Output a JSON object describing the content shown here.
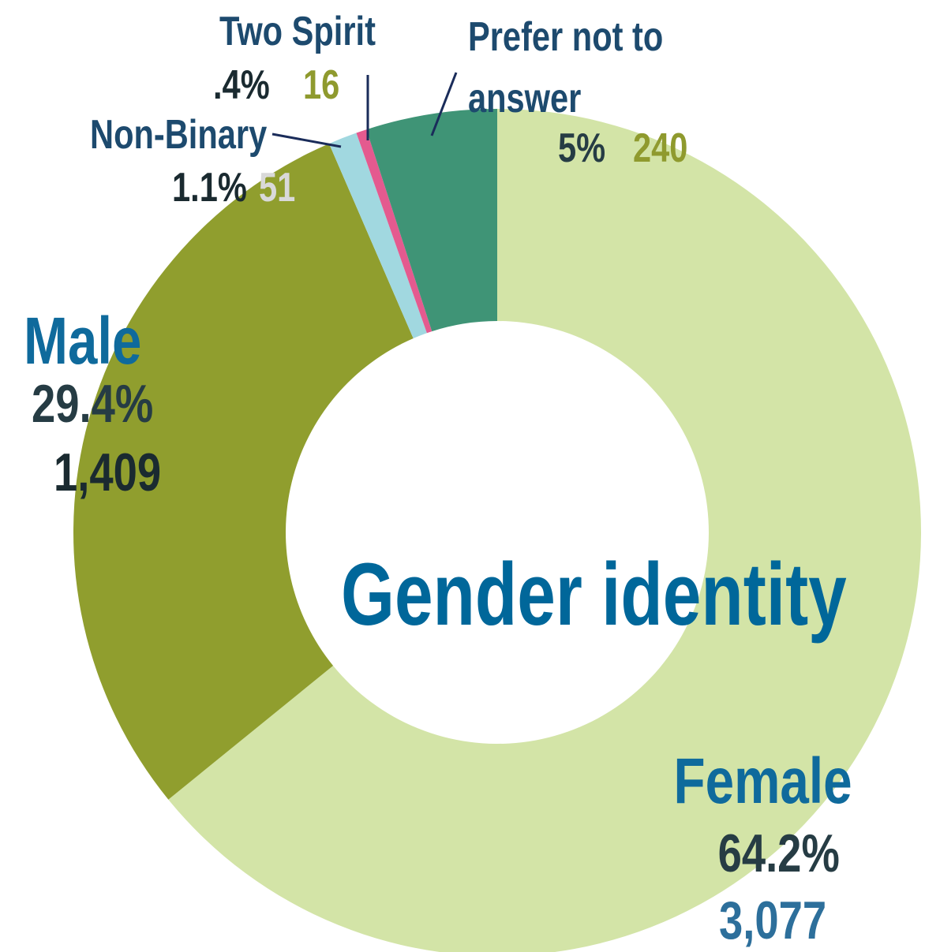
{
  "chart_data": {
    "type": "donut",
    "title": "Gender identity",
    "categories": [
      "Female",
      "Male",
      "Non-Binary",
      "Two Spirit",
      "Prefer not to answer"
    ],
    "values": [
      64.2,
      29.4,
      1.1,
      0.4,
      5
    ],
    "value_labels": [
      "64.2%",
      "29.4%",
      "1.1%",
      ".4%",
      "5%"
    ],
    "counts": [
      3077,
      1409,
      51,
      16,
      240
    ],
    "count_labels": [
      "3,077",
      "1,409",
      "51",
      "16",
      "240"
    ],
    "colors": [
      "#d3e4a7",
      "#909e2e",
      "#a1d8e0",
      "#e45a8f",
      "#3f9476"
    ]
  }
}
